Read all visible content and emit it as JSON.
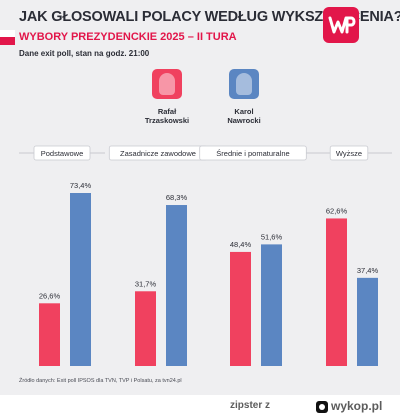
{
  "header": {
    "title": "JAK GŁOSOWALI POLACY WEDŁUG WYKSZTAŁCENIA?",
    "subtitle": "WYBORY PREZYDENCKIE 2025 – II TURA",
    "note": "Dane exit poll, stan na godz. 21:00"
  },
  "logo": {
    "text": "WP",
    "color": "#e2164a"
  },
  "candidates": [
    {
      "first": "Rafał",
      "last": "Trzaskowski",
      "color": "#f0415f"
    },
    {
      "first": "Karol",
      "last": "Nawrocki",
      "color": "#5b86c2"
    }
  ],
  "chart_data": {
    "type": "bar",
    "categories": [
      "Podstawowe",
      "Zasadnicze zawodowe",
      "Średnie i pomaturalne",
      "Wyższe"
    ],
    "series": [
      {
        "name": "Rafał Trzaskowski",
        "values": [
          26.6,
          31.7,
          48.4,
          62.6
        ],
        "labels": [
          "26,6%",
          "31,7%",
          "48,4%",
          "62,6%"
        ],
        "color": "#f0415f"
      },
      {
        "name": "Karol Nawrocki",
        "values": [
          73.4,
          68.3,
          51.6,
          37.4
        ],
        "labels": [
          "73,4%",
          "68,3%",
          "51,6%",
          "37,4%"
        ],
        "color": "#5b86c2"
      }
    ],
    "ylim": [
      0,
      100
    ],
    "grid": false,
    "legend": "top"
  },
  "footer": {
    "source": "Źródło danych: Exit poll IPSOS dla TVN, TVP i Polsatu, za tvn24.pl"
  },
  "watermark": {
    "user": "zipster",
    "via": "z",
    "site": "wykop.pl"
  }
}
